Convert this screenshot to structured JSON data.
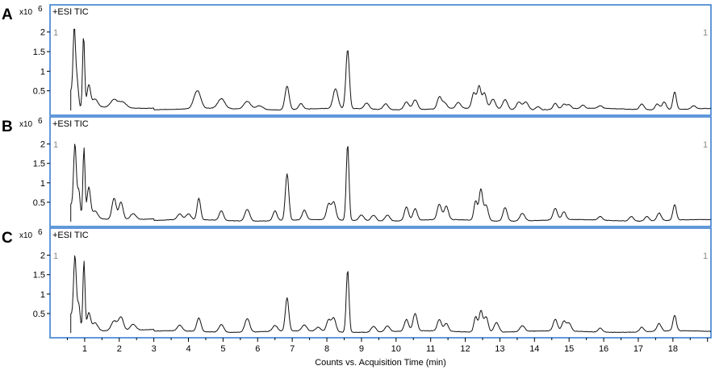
{
  "chart_data": [
    {
      "panel": "A",
      "type": "line",
      "title": "+ESI TIC",
      "exponent_label": "x10",
      "exponent": "6",
      "corner_label_left": "1",
      "corner_label_right": "1",
      "yticks": [
        "0.5",
        "1",
        "1.5",
        "2"
      ],
      "ylim": [
        0,
        2.2
      ],
      "xlim": [
        0,
        19.1
      ],
      "series": [
        {
          "peaks": [
            [
              0.58,
              0.45,
              0.07
            ],
            [
              0.7,
              1.9,
              0.035
            ],
            [
              0.78,
              0.7,
              0.04
            ],
            [
              0.97,
              1.85,
              0.03
            ],
            [
              1.12,
              0.55,
              0.05
            ],
            [
              1.3,
              0.2,
              0.08
            ],
            [
              1.85,
              0.2,
              0.1
            ],
            [
              2.1,
              0.15,
              0.1
            ],
            [
              4.2,
              0.25,
              0.08
            ],
            [
              4.3,
              0.3,
              0.08
            ],
            [
              4.95,
              0.25,
              0.1
            ],
            [
              5.7,
              0.2,
              0.1
            ],
            [
              6.05,
              0.1,
              0.1
            ],
            [
              6.85,
              0.6,
              0.06
            ],
            [
              7.25,
              0.15,
              0.06
            ],
            [
              8.25,
              0.5,
              0.07
            ],
            [
              8.6,
              1.5,
              0.05
            ],
            [
              9.15,
              0.15,
              0.07
            ],
            [
              9.7,
              0.15,
              0.07
            ],
            [
              10.3,
              0.2,
              0.07
            ],
            [
              10.55,
              0.25,
              0.07
            ],
            [
              11.25,
              0.3,
              0.06
            ],
            [
              11.4,
              0.15,
              0.07
            ],
            [
              11.8,
              0.15,
              0.07
            ],
            [
              12.25,
              0.4,
              0.06
            ],
            [
              12.4,
              0.55,
              0.05
            ],
            [
              12.55,
              0.4,
              0.06
            ],
            [
              12.8,
              0.25,
              0.07
            ],
            [
              13.15,
              0.25,
              0.07
            ],
            [
              13.55,
              0.2,
              0.07
            ],
            [
              13.75,
              0.2,
              0.07
            ],
            [
              14.1,
              0.08,
              0.06
            ],
            [
              14.6,
              0.15,
              0.06
            ],
            [
              14.85,
              0.12,
              0.06
            ],
            [
              15.0,
              0.1,
              0.06
            ],
            [
              15.4,
              0.08,
              0.06
            ],
            [
              15.9,
              0.07,
              0.06
            ],
            [
              17.1,
              0.15,
              0.06
            ],
            [
              17.55,
              0.15,
              0.06
            ],
            [
              17.75,
              0.2,
              0.06
            ],
            [
              18.05,
              0.45,
              0.05
            ],
            [
              18.6,
              0.08,
              0.06
            ]
          ]
        }
      ]
    },
    {
      "panel": "B",
      "type": "line",
      "title": "+ESI TIC",
      "exponent_label": "x10",
      "exponent": "6",
      "corner_label_left": "1",
      "corner_label_right": "1",
      "yticks": [
        "0.5",
        "1",
        "1.5",
        "2"
      ],
      "ylim": [
        0,
        2.2
      ],
      "xlim": [
        0,
        19.1
      ],
      "series": [
        {
          "peaks": [
            [
              0.58,
              0.4,
              0.07
            ],
            [
              0.72,
              1.9,
              0.04
            ],
            [
              0.83,
              0.75,
              0.04
            ],
            [
              0.98,
              1.85,
              0.03
            ],
            [
              1.12,
              0.8,
              0.05
            ],
            [
              1.3,
              0.2,
              0.08
            ],
            [
              1.85,
              0.55,
              0.06
            ],
            [
              2.05,
              0.45,
              0.06
            ],
            [
              2.4,
              0.15,
              0.08
            ],
            [
              3.75,
              0.15,
              0.07
            ],
            [
              4.0,
              0.15,
              0.07
            ],
            [
              4.3,
              0.55,
              0.05
            ],
            [
              4.95,
              0.25,
              0.06
            ],
            [
              5.7,
              0.3,
              0.07
            ],
            [
              6.5,
              0.25,
              0.06
            ],
            [
              6.85,
              1.2,
              0.05
            ],
            [
              7.35,
              0.25,
              0.06
            ],
            [
              8.05,
              0.4,
              0.06
            ],
            [
              8.2,
              0.45,
              0.06
            ],
            [
              8.6,
              1.95,
              0.04
            ],
            [
              9.0,
              0.15,
              0.07
            ],
            [
              9.35,
              0.15,
              0.07
            ],
            [
              9.75,
              0.15,
              0.07
            ],
            [
              10.3,
              0.35,
              0.06
            ],
            [
              10.55,
              0.3,
              0.06
            ],
            [
              11.25,
              0.4,
              0.06
            ],
            [
              11.45,
              0.35,
              0.06
            ],
            [
              12.3,
              0.5,
              0.05
            ],
            [
              12.45,
              0.8,
              0.05
            ],
            [
              12.6,
              0.4,
              0.06
            ],
            [
              13.15,
              0.35,
              0.06
            ],
            [
              13.65,
              0.2,
              0.07
            ],
            [
              14.6,
              0.3,
              0.06
            ],
            [
              14.85,
              0.2,
              0.06
            ],
            [
              15.9,
              0.1,
              0.06
            ],
            [
              16.8,
              0.12,
              0.06
            ],
            [
              17.25,
              0.12,
              0.06
            ],
            [
              17.6,
              0.2,
              0.06
            ],
            [
              18.05,
              0.4,
              0.05
            ]
          ]
        }
      ]
    },
    {
      "panel": "C",
      "type": "line",
      "title": "+ESI TIC",
      "exponent_label": "x10",
      "exponent": "6",
      "corner_label_left": "1",
      "corner_label_right": "1",
      "yticks": [
        "0.5",
        "1",
        "1.5",
        "2"
      ],
      "ylim": [
        0,
        2.2
      ],
      "xlim": [
        0,
        19.1
      ],
      "series": [
        {
          "peaks": [
            [
              0.58,
              0.45,
              0.07
            ],
            [
              0.72,
              1.9,
              0.04
            ],
            [
              0.83,
              0.7,
              0.04
            ],
            [
              0.98,
              1.82,
              0.03
            ],
            [
              1.12,
              0.45,
              0.05
            ],
            [
              1.3,
              0.2,
              0.08
            ],
            [
              1.85,
              0.25,
              0.08
            ],
            [
              2.05,
              0.35,
              0.07
            ],
            [
              2.4,
              0.15,
              0.08
            ],
            [
              3.75,
              0.15,
              0.07
            ],
            [
              4.3,
              0.35,
              0.06
            ],
            [
              4.95,
              0.2,
              0.07
            ],
            [
              5.7,
              0.35,
              0.07
            ],
            [
              6.5,
              0.15,
              0.07
            ],
            [
              6.85,
              0.85,
              0.05
            ],
            [
              7.35,
              0.15,
              0.07
            ],
            [
              7.75,
              0.1,
              0.07
            ],
            [
              8.05,
              0.3,
              0.06
            ],
            [
              8.2,
              0.35,
              0.06
            ],
            [
              8.6,
              1.6,
              0.04
            ],
            [
              9.35,
              0.15,
              0.07
            ],
            [
              9.75,
              0.15,
              0.07
            ],
            [
              10.3,
              0.3,
              0.06
            ],
            [
              10.55,
              0.45,
              0.06
            ],
            [
              11.25,
              0.3,
              0.06
            ],
            [
              11.45,
              0.2,
              0.06
            ],
            [
              12.3,
              0.4,
              0.05
            ],
            [
              12.45,
              0.55,
              0.05
            ],
            [
              12.6,
              0.4,
              0.06
            ],
            [
              12.9,
              0.25,
              0.07
            ],
            [
              13.65,
              0.15,
              0.07
            ],
            [
              14.6,
              0.3,
              0.06
            ],
            [
              14.85,
              0.25,
              0.06
            ],
            [
              15.0,
              0.2,
              0.06
            ],
            [
              15.9,
              0.1,
              0.06
            ],
            [
              17.1,
              0.12,
              0.06
            ],
            [
              17.6,
              0.2,
              0.06
            ],
            [
              18.05,
              0.4,
              0.05
            ]
          ]
        }
      ]
    }
  ],
  "x_axis": {
    "ticks": [
      "1",
      "2",
      "3",
      "4",
      "5",
      "6",
      "7",
      "8",
      "9",
      "10",
      "11",
      "12",
      "13",
      "14",
      "15",
      "16",
      "17",
      "18"
    ],
    "label": "Counts vs. Acquisition Time (min)"
  }
}
